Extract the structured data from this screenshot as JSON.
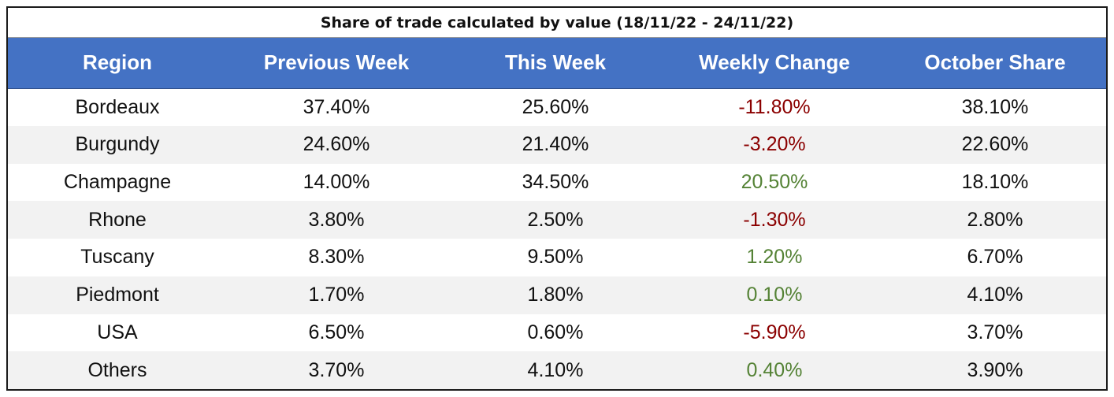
{
  "title": "Share of trade calculated by value (18/11/22 - 24/11/22)",
  "colors": {
    "header_bg": "#4472c4",
    "negative": "#8b0000",
    "positive": "#548235",
    "row_alt": "#f2f2f2"
  },
  "chart_data": {
    "type": "table",
    "title": "Share of trade calculated by value (18/11/22 - 24/11/22)",
    "columns": [
      "Region",
      "Previous Week",
      "This Week",
      "Weekly Change",
      "October Share"
    ],
    "rows": [
      {
        "region": "Bordeaux",
        "previous_week": "37.40%",
        "this_week": "25.60%",
        "weekly_change": "-11.80%",
        "october_share": "38.10%"
      },
      {
        "region": "Burgundy",
        "previous_week": "24.60%",
        "this_week": "21.40%",
        "weekly_change": "-3.20%",
        "october_share": "22.60%"
      },
      {
        "region": "Champagne",
        "previous_week": "14.00%",
        "this_week": "34.50%",
        "weekly_change": "20.50%",
        "october_share": "18.10%"
      },
      {
        "region": "Rhone",
        "previous_week": "3.80%",
        "this_week": "2.50%",
        "weekly_change": "-1.30%",
        "october_share": "2.80%"
      },
      {
        "region": "Tuscany",
        "previous_week": "8.30%",
        "this_week": "9.50%",
        "weekly_change": "1.20%",
        "october_share": "6.70%"
      },
      {
        "region": "Piedmont",
        "previous_week": "1.70%",
        "this_week": "1.80%",
        "weekly_change": "0.10%",
        "october_share": "4.10%"
      },
      {
        "region": "USA",
        "previous_week": "6.50%",
        "this_week": "0.60%",
        "weekly_change": "-5.90%",
        "october_share": "3.70%"
      },
      {
        "region": "Others",
        "previous_week": "3.70%",
        "this_week": "4.10%",
        "weekly_change": "0.40%",
        "october_share": "3.90%"
      }
    ]
  }
}
